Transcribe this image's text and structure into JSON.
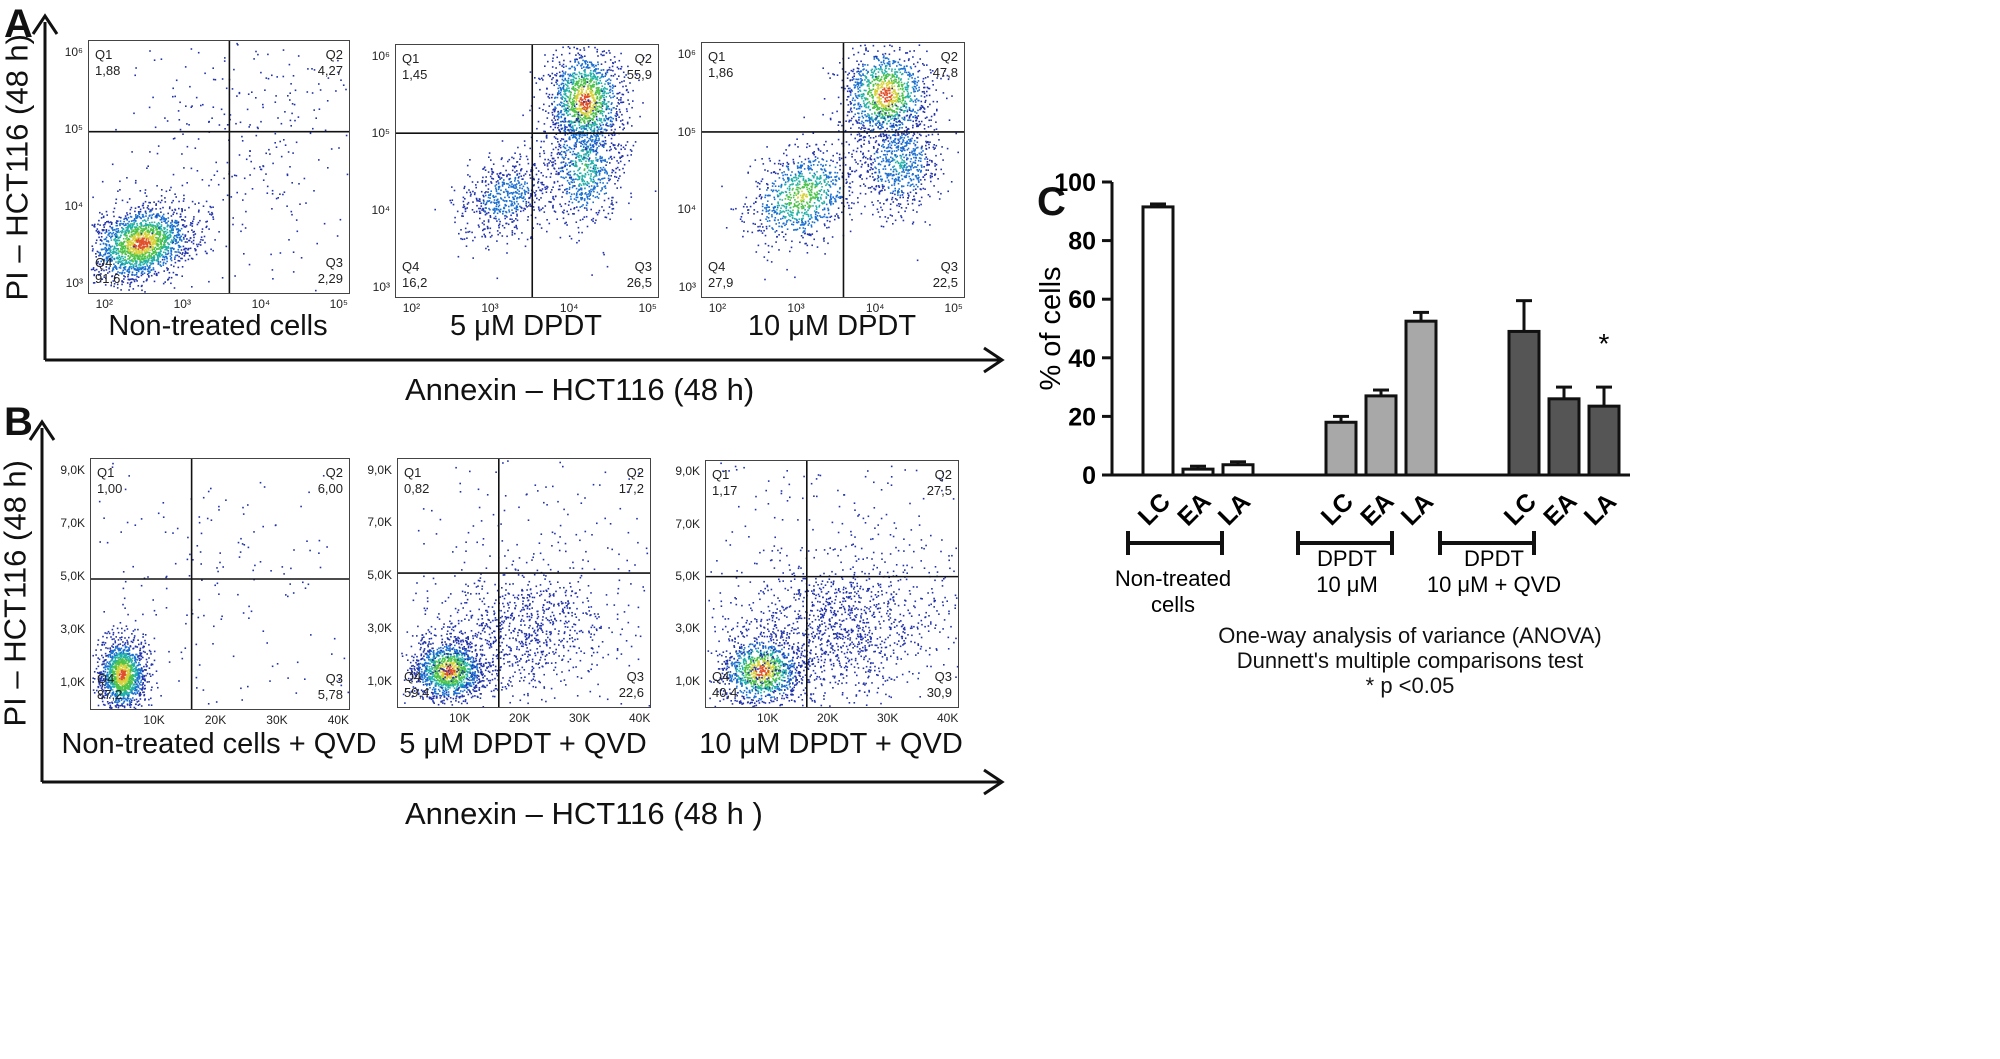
{
  "panels": {
    "A": {
      "letter": "A",
      "y_title": "PI – HCT116 (48 h)",
      "x_title": "Annexin – HCT116 (48 h)"
    },
    "B": {
      "letter": "B",
      "y_title": "PI – HCT116 (48 h)",
      "x_title": "Annexin – HCT116 (48 h )"
    },
    "C": {
      "letter": "C"
    }
  },
  "annotation": {
    "line1": "One-way analysis of variance (ANOVA)",
    "line2": "Dunnett's multiple comparisons test",
    "line3": "* p <0.05"
  },
  "chart_data": [
    {
      "type": "scatter",
      "panel": "A",
      "caption": "Non-treated  cells",
      "x_scale": "log",
      "y_scale": "log",
      "x_ticks": [
        "10²",
        "10³",
        "10⁴",
        "10⁵"
      ],
      "y_ticks": [
        "10³",
        "10⁴",
        "10⁵",
        "10⁶"
      ],
      "quadrants": {
        "Q1": "1,88",
        "Q2": "4,27",
        "Q3": "2,29",
        "Q4": "91,6"
      }
    },
    {
      "type": "scatter",
      "panel": "A",
      "caption": "5 μM DPDT",
      "x_scale": "log",
      "y_scale": "log",
      "x_ticks": [
        "10²",
        "10³",
        "10⁴",
        "10⁵"
      ],
      "y_ticks": [
        "10³",
        "10⁴",
        "10⁵",
        "10⁶"
      ],
      "quadrants": {
        "Q1": "1,45",
        "Q2": "55,9",
        "Q3": "26,5",
        "Q4": "16,2"
      }
    },
    {
      "type": "scatter",
      "panel": "A",
      "caption": "10 μM  DPDT",
      "x_scale": "log",
      "y_scale": "log",
      "x_ticks": [
        "10²",
        "10³",
        "10⁴",
        "10⁵"
      ],
      "y_ticks": [
        "10³",
        "10⁴",
        "10⁵",
        "10⁶"
      ],
      "quadrants": {
        "Q1": "1,86",
        "Q2": "47,8",
        "Q3": "22,5",
        "Q4": "27,9"
      }
    },
    {
      "type": "scatter",
      "panel": "B",
      "caption": "Non-treated  cells + QVD",
      "x_scale": "linear",
      "y_scale": "linear",
      "x_ticks": [
        "10K",
        "20K",
        "30K",
        "40K"
      ],
      "y_ticks": [
        "1,0K",
        "3,0K",
        "5,0K",
        "7,0K",
        "9,0K"
      ],
      "quadrants": {
        "Q1": "1,00",
        "Q2": "6,00",
        "Q3": "5,78",
        "Q4": "87,2"
      }
    },
    {
      "type": "scatter",
      "panel": "B",
      "caption": "5 μM DPDT + QVD",
      "x_scale": "linear",
      "y_scale": "linear",
      "x_ticks": [
        "10K",
        "20K",
        "30K",
        "40K"
      ],
      "y_ticks": [
        "1,0K",
        "3,0K",
        "5,0K",
        "7,0K",
        "9,0K"
      ],
      "quadrants": {
        "Q1": "0,82",
        "Q2": "17,2",
        "Q3": "22,6",
        "Q4": "59,4"
      }
    },
    {
      "type": "scatter",
      "panel": "B",
      "caption": "10 μM DPDT + QVD",
      "x_scale": "linear",
      "y_scale": "linear",
      "x_ticks": [
        "10K",
        "20K",
        "30K",
        "40K"
      ],
      "y_ticks": [
        "1,0K",
        "3,0K",
        "5,0K",
        "7,0K",
        "9,0K"
      ],
      "quadrants": {
        "Q1": "1,17",
        "Q2": "27,5",
        "Q3": "30,9",
        "Q4": "40,4"
      }
    },
    {
      "type": "bar",
      "panel": "C",
      "ylabel": "% of cells",
      "ylim": [
        0,
        100
      ],
      "y_ticks": [
        0,
        20,
        40,
        60,
        80,
        100
      ],
      "categories": [
        "LC",
        "EA",
        "LA",
        "LC",
        "EA",
        "LA",
        "LC",
        "EA",
        "LA"
      ],
      "values": [
        91.5,
        2,
        3.5,
        18,
        27,
        52.5,
        49,
        26,
        23.5
      ],
      "errors": [
        1,
        1,
        1,
        2,
        2,
        3,
        10.5,
        4,
        6.5
      ],
      "colors": [
        "#ffffff",
        "#ffffff",
        "#ffffff",
        "#a8a8a8",
        "#a8a8a8",
        "#a8a8a8",
        "#555555",
        "#555555",
        "#555555"
      ],
      "significance": [
        null,
        null,
        null,
        null,
        null,
        null,
        null,
        null,
        "*"
      ],
      "groups": [
        {
          "label_line1": "Non-treated",
          "label_line2": "cells"
        },
        {
          "label_line1": "DPDT",
          "label_line2": "10 μM"
        },
        {
          "label_line1": "DPDT",
          "label_line2": "10 μM + QVD"
        }
      ]
    }
  ]
}
